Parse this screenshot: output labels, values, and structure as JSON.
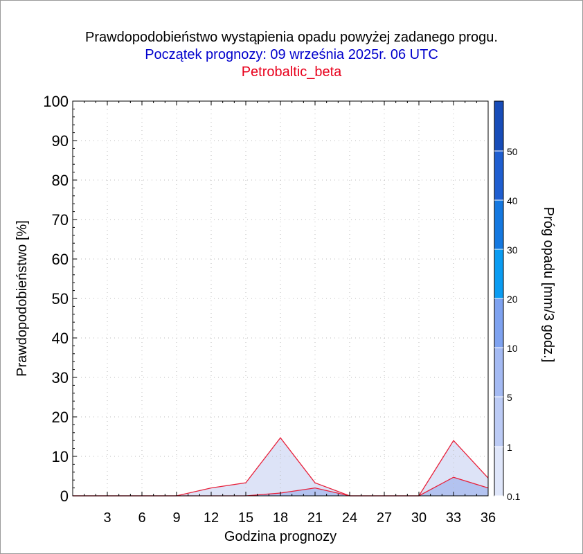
{
  "title": "Prawdopodobieństwo wystąpienia opadu powyżej zadanego progu.",
  "subtitle": "Początek prognozy: 09 września 2025r. 06 UTC",
  "model": "Petrobaltic_beta",
  "chart_data": {
    "type": "area",
    "xlabel": "Godzina prognozy",
    "ylabel": "Prawdopodobieństwo [%]",
    "xlim": [
      0,
      36
    ],
    "ylim": [
      0,
      100
    ],
    "x_ticks": [
      3,
      6,
      9,
      12,
      15,
      18,
      21,
      24,
      27,
      30,
      33,
      36
    ],
    "y_ticks": [
      0,
      10,
      20,
      30,
      40,
      50,
      60,
      70,
      80,
      90,
      100
    ],
    "grid": true,
    "x": [
      0,
      3,
      6,
      9,
      12,
      15,
      18,
      21,
      24,
      27,
      30,
      33,
      36
    ],
    "series": [
      {
        "name": "0.1",
        "color": "#dde3f7",
        "values": [
          0,
          0,
          0,
          0,
          2,
          3.3,
          14.7,
          3.3,
          0,
          0,
          0,
          14,
          4.5
        ]
      },
      {
        "name": "1",
        "color": "#b3c3f0",
        "values": [
          0,
          0,
          0,
          0,
          0,
          0,
          0.7,
          2,
          0,
          0,
          0,
          4.7,
          2
        ]
      }
    ],
    "colorbar": {
      "label": "Próg opadu [mm/3 godz.]",
      "levels": [
        "0.1",
        "1",
        "5",
        "10",
        "20",
        "30",
        "40",
        "50"
      ],
      "colors": [
        "#dfe6fa",
        "#bccbf5",
        "#a4baf3",
        "#7ea2f0",
        "#0a9cf2",
        "#1478e0",
        "#1f5ed0",
        "#174cb8",
        "#0f3a9a"
      ]
    }
  }
}
